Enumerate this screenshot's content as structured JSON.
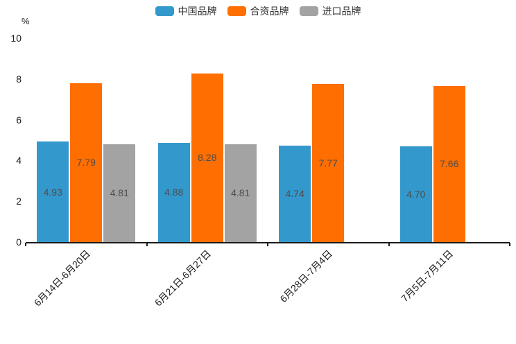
{
  "chart_data": {
    "type": "bar",
    "title": "",
    "xlabel": "",
    "ylabel": "%",
    "ylim": [
      0,
      10
    ],
    "yticks": [
      0,
      2,
      4,
      6,
      8,
      10
    ],
    "grid": false,
    "legend_position": "top-center",
    "categories": [
      "6月14日-6月20日",
      "6月21日-6月27日",
      "6月28日-7月4日",
      "7月5日-7月11日"
    ],
    "series": [
      {
        "key": "china-brand",
        "name": "中国品牌",
        "color": "#3398CC",
        "values": [
          4.93,
          4.88,
          4.74,
          4.7
        ],
        "labels": [
          "4.93",
          "4.88",
          "4.74",
          "4.70"
        ]
      },
      {
        "key": "joint-venture-brand",
        "name": "合资品牌",
        "color": "#FF6E00",
        "values": [
          7.79,
          8.28,
          7.77,
          7.66
        ],
        "labels": [
          "7.79",
          "8.28",
          "7.77",
          "7.66"
        ]
      },
      {
        "key": "imported-brand",
        "name": "进口品牌",
        "color": "#A3A3A3",
        "values": [
          4.81,
          4.81,
          null,
          null
        ],
        "labels": [
          "4.81",
          "4.81",
          null,
          null
        ]
      }
    ]
  },
  "colors": {
    "axis": "#1A1A1A",
    "value_label_text": "#4D4D4D",
    "legend_text": "#333333",
    "background": "#FFFFFF"
  }
}
